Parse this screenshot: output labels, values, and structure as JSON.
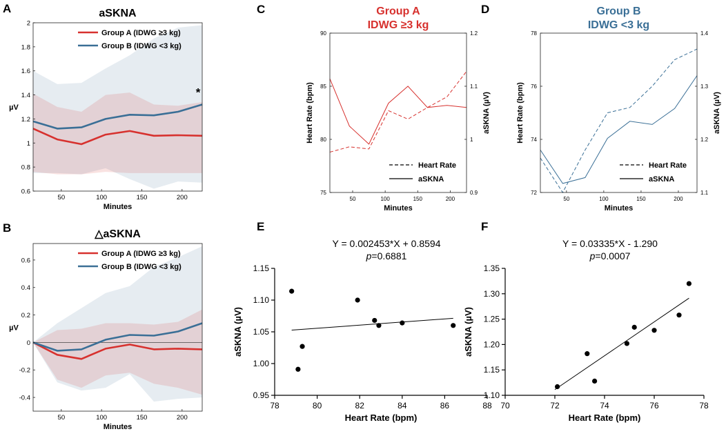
{
  "chart_data": [
    {
      "id": "A",
      "panel_letter": "A",
      "type": "line",
      "title": "aSKNA",
      "xlabel": "Minutes",
      "ylabel": "µV",
      "xlim": [
        15,
        225
      ],
      "ylim": [
        0.6,
        2.0
      ],
      "xticks": [
        50,
        100,
        150,
        200
      ],
      "yticks": [
        0.6,
        0.8,
        1,
        1.2,
        1.4,
        1.6,
        1.8,
        2
      ],
      "ytick_labels": [
        "0.6",
        "0.8",
        "1",
        "1.2",
        "1.4",
        "1.6",
        "1.8",
        "2"
      ],
      "x": [
        15,
        45,
        75,
        105,
        135,
        165,
        195,
        225
      ],
      "series": [
        {
          "name": "Group A (IDWG ≥3 kg)",
          "color": "#d7312e",
          "values": [
            1.12,
            1.03,
            0.99,
            1.07,
            1.1,
            1.06,
            1.065,
            1.06
          ],
          "lower": [
            0.76,
            0.74,
            0.74,
            0.76,
            0.75,
            0.75,
            0.75,
            0.75
          ],
          "upper": [
            1.41,
            1.3,
            1.26,
            1.4,
            1.42,
            1.32,
            1.31,
            1.34
          ]
        },
        {
          "name": "Group B (IDWG <3 kg)",
          "color": "#3a6f96",
          "values": [
            1.18,
            1.12,
            1.13,
            1.2,
            1.235,
            1.23,
            1.26,
            1.32
          ],
          "lower": [
            0.75,
            0.75,
            0.74,
            0.79,
            0.7,
            0.62,
            0.68,
            0.67
          ],
          "upper": [
            1.6,
            1.49,
            1.5,
            1.62,
            1.73,
            1.87,
            1.96,
            1.98
          ]
        }
      ],
      "annotation": "*",
      "legend_position": "top-right"
    },
    {
      "id": "B",
      "panel_letter": "B",
      "type": "line",
      "title": "△aSKNA",
      "xlabel": "Minutes",
      "ylabel": "µV",
      "xlim": [
        15,
        225
      ],
      "ylim": [
        -0.5,
        0.72
      ],
      "xticks": [
        50,
        100,
        150,
        200
      ],
      "yticks": [
        -0.4,
        -0.2,
        0,
        0.2,
        0.4,
        0.6
      ],
      "ytick_labels": [
        "-0.4",
        "-0.2",
        "0",
        "0.2",
        "0.4",
        "0.6"
      ],
      "x": [
        15,
        45,
        75,
        105,
        135,
        165,
        195,
        225
      ],
      "series": [
        {
          "name": "Group A (IDWG ≥3 kg)",
          "color": "#d7312e",
          "values": [
            0,
            -0.09,
            -0.12,
            -0.045,
            -0.015,
            -0.05,
            -0.045,
            -0.05
          ],
          "lower": [
            0,
            -0.27,
            -0.33,
            -0.24,
            -0.22,
            -0.3,
            -0.33,
            -0.38
          ],
          "upper": [
            0,
            0.09,
            0.1,
            0.14,
            0.14,
            0.13,
            0.15,
            0.24
          ]
        },
        {
          "name": "Group B (IDWG <3 kg)",
          "color": "#3a6f96",
          "values": [
            0,
            -0.06,
            -0.05,
            0.02,
            0.055,
            0.05,
            0.08,
            0.14
          ],
          "lower": [
            0,
            -0.29,
            -0.35,
            -0.33,
            -0.23,
            -0.43,
            -0.41,
            -0.4
          ],
          "upper": [
            0,
            0.14,
            0.25,
            0.36,
            0.41,
            0.55,
            0.62,
            0.7
          ]
        }
      ],
      "zero_line": true,
      "legend_position": "top-right"
    },
    {
      "id": "C",
      "panel_letter": "C",
      "type": "line",
      "title": "Group A",
      "subtitle": "IDWG ≥3 kg",
      "title_color": "#d7312e",
      "xlabel": "Minutes",
      "ylabel": "Heart Rate (bpm)",
      "y2label": "aSKNA (µV)",
      "xlim": [
        15,
        225
      ],
      "ylim": [
        75,
        90
      ],
      "y2lim": [
        0.9,
        1.2
      ],
      "xticks": [
        50,
        100,
        150,
        200
      ],
      "yticks": [
        75,
        80,
        85,
        90
      ],
      "y2ticks": [
        0.9,
        1,
        1.1,
        1.2
      ],
      "y2tick_labels": [
        "0.9",
        "1",
        "1.1",
        "1.2"
      ],
      "x": [
        15,
        45,
        75,
        105,
        135,
        165,
        195,
        225
      ],
      "series": [
        {
          "name": "Heart Rate",
          "axis": "left",
          "style": "dashed",
          "color": "#d7312e",
          "values": [
            78.8,
            79.3,
            79.1,
            82.7,
            81.9,
            83.0,
            84.0,
            86.4
          ]
        },
        {
          "name": "aSKNA",
          "axis": "right",
          "style": "solid",
          "color": "#d7312e",
          "values": [
            1.114,
            1.025,
            0.991,
            1.068,
            1.1,
            1.06,
            1.064,
            1.06
          ]
        }
      ],
      "legend_position": "bottom-right"
    },
    {
      "id": "D",
      "panel_letter": "D",
      "type": "line",
      "title": "Group B",
      "subtitle": "IDWG <3 kg",
      "title_color": "#3a6f96",
      "xlabel": "Minutes",
      "ylabel": "Heart Rate (bpm)",
      "y2label": "aSKNA (µV)",
      "xlim": [
        15,
        225
      ],
      "ylim": [
        72,
        78
      ],
      "y2lim": [
        1.1,
        1.4
      ],
      "xticks": [
        50,
        100,
        150,
        200
      ],
      "yticks": [
        72,
        74,
        76,
        78
      ],
      "y2ticks": [
        1.1,
        1.2,
        1.3,
        1.4
      ],
      "y2tick_labels": [
        "1.1",
        "1.2",
        "1.3",
        "1.4"
      ],
      "x": [
        15,
        45,
        75,
        105,
        135,
        165,
        195,
        225
      ],
      "series": [
        {
          "name": "Heart Rate",
          "axis": "left",
          "style": "dashed",
          "color": "#3a6f96",
          "values": [
            73.3,
            72.0,
            73.6,
            75.0,
            75.2,
            76.0,
            77.0,
            77.4
          ]
        },
        {
          "name": "aSKNA",
          "axis": "right",
          "style": "solid",
          "color": "#3a6f96",
          "values": [
            1.18,
            1.117,
            1.128,
            1.202,
            1.234,
            1.228,
            1.258,
            1.32
          ]
        }
      ],
      "legend_position": "bottom-right"
    },
    {
      "id": "E",
      "panel_letter": "E",
      "type": "scatter",
      "equation": "Y = 0.002453*X + 0.8594",
      "p_label": "p",
      "p_value": "=0.6881",
      "xlabel": "Heart Rate (bpm)",
      "ylabel": "aSKNA (µV)",
      "xlim": [
        78,
        88
      ],
      "ylim": [
        0.95,
        1.15
      ],
      "xticks": [
        78,
        80,
        82,
        84,
        86,
        88
      ],
      "yticks": [
        0.95,
        1.0,
        1.05,
        1.1,
        1.15
      ],
      "ytick_labels": [
        "0.95",
        "1.00",
        "1.05",
        "1.10",
        "1.15"
      ],
      "points": [
        [
          78.8,
          1.114
        ],
        [
          79.1,
          0.991
        ],
        [
          79.3,
          1.027
        ],
        [
          81.9,
          1.1
        ],
        [
          82.7,
          1.068
        ],
        [
          82.9,
          1.06
        ],
        [
          84.0,
          1.064
        ],
        [
          86.4,
          1.06
        ]
      ],
      "fit": {
        "slope": 0.002453,
        "intercept": 0.8594,
        "x_range": [
          78.8,
          86.4
        ]
      }
    },
    {
      "id": "F",
      "panel_letter": "F",
      "type": "scatter",
      "equation": "Y = 0.03335*X - 1.290",
      "p_label": "p",
      "p_value": "=0.0007",
      "xlabel": "Heart Rate (bpm)",
      "ylabel": "aSKNA (µV)",
      "xlim": [
        70,
        78
      ],
      "ylim": [
        1.1,
        1.35
      ],
      "xticks": [
        70,
        72,
        74,
        76,
        78
      ],
      "yticks": [
        1.1,
        1.15,
        1.2,
        1.25,
        1.3,
        1.35
      ],
      "ytick_labels": [
        "1.10",
        "1.15",
        "1.20",
        "1.25",
        "1.30",
        "1.35"
      ],
      "points": [
        [
          72.1,
          1.117
        ],
        [
          73.3,
          1.182
        ],
        [
          73.6,
          1.128
        ],
        [
          74.9,
          1.202
        ],
        [
          75.2,
          1.234
        ],
        [
          76.0,
          1.228
        ],
        [
          77.0,
          1.258
        ],
        [
          77.4,
          1.32
        ]
      ],
      "fit": {
        "slope": 0.03335,
        "intercept": -1.29,
        "x_range": [
          72.0,
          77.4
        ]
      }
    }
  ]
}
